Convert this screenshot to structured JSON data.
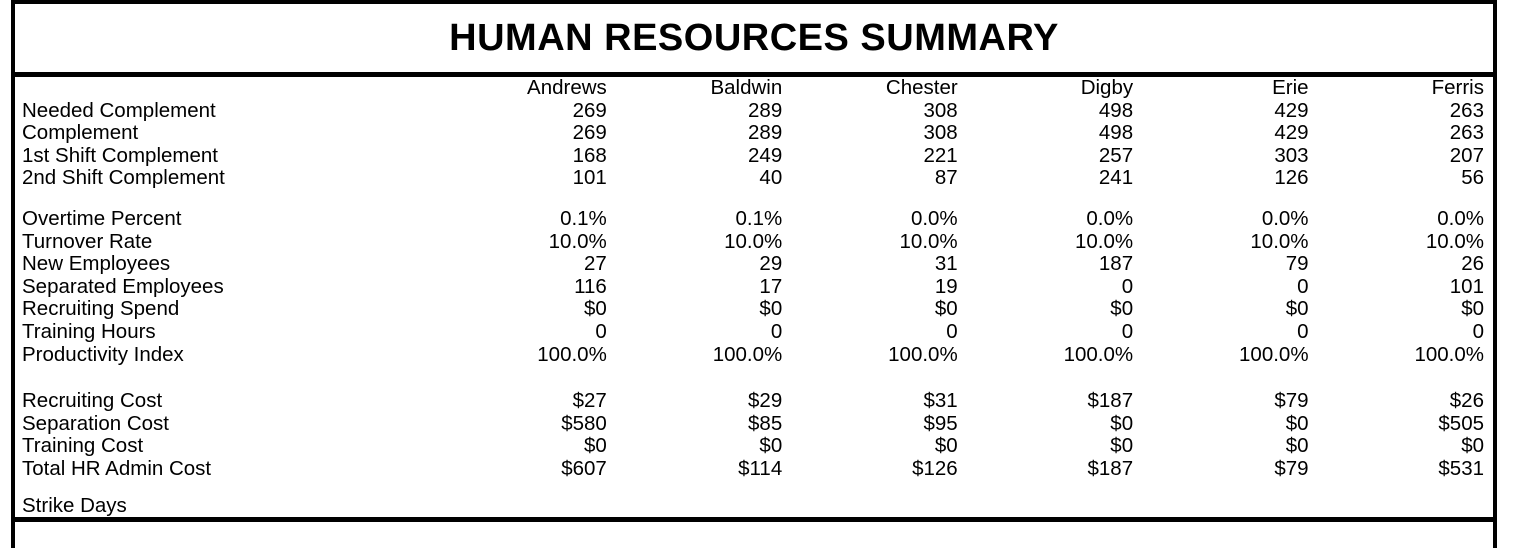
{
  "title": "HUMAN RESOURCES SUMMARY",
  "colors": {
    "text": "#000000",
    "background": "#ffffff",
    "border": "#000000"
  },
  "table": {
    "columns": [
      "Andrews",
      "Baldwin",
      "Chester",
      "Digby",
      "Erie",
      "Ferris"
    ],
    "groups": [
      {
        "name": "complement",
        "rows": [
          {
            "label": "Needed Complement",
            "values": [
              "269",
              "289",
              "308",
              "498",
              "429",
              "263"
            ]
          },
          {
            "label": "Complement",
            "values": [
              "269",
              "289",
              "308",
              "498",
              "429",
              "263"
            ]
          },
          {
            "label": "1st Shift Complement",
            "values": [
              "168",
              "249",
              "221",
              "257",
              "303",
              "207"
            ]
          },
          {
            "label": "2nd Shift Complement",
            "values": [
              "101",
              "40",
              "87",
              "241",
              "126",
              "56"
            ]
          }
        ]
      },
      {
        "name": "workforce-metrics",
        "rows": [
          {
            "label": "Overtime Percent",
            "values": [
              "0.1%",
              "0.1%",
              "0.0%",
              "0.0%",
              "0.0%",
              "0.0%"
            ]
          },
          {
            "label": "Turnover Rate",
            "values": [
              "10.0%",
              "10.0%",
              "10.0%",
              "10.0%",
              "10.0%",
              "10.0%"
            ]
          },
          {
            "label": "New Employees",
            "values": [
              "27",
              "29",
              "31",
              "187",
              "79",
              "26"
            ]
          },
          {
            "label": "Separated Employees",
            "values": [
              "116",
              "17",
              "19",
              "0",
              "0",
              "101"
            ]
          },
          {
            "label": "Recruiting Spend",
            "values": [
              "$0",
              "$0",
              "$0",
              "$0",
              "$0",
              "$0"
            ]
          },
          {
            "label": "Training Hours",
            "values": [
              "0",
              "0",
              "0",
              "0",
              "0",
              "0"
            ]
          },
          {
            "label": "Productivity Index",
            "values": [
              "100.0%",
              "100.0%",
              "100.0%",
              "100.0%",
              "100.0%",
              "100.0%"
            ]
          }
        ]
      },
      {
        "name": "hr-costs",
        "rows": [
          {
            "label": "Recruiting Cost",
            "values": [
              "$27",
              "$29",
              "$31",
              "$187",
              "$79",
              "$26"
            ]
          },
          {
            "label": "Separation Cost",
            "values": [
              "$580",
              "$85",
              "$95",
              "$0",
              "$0",
              "$505"
            ]
          },
          {
            "label": "Training Cost",
            "values": [
              "$0",
              "$0",
              "$0",
              "$0",
              "$0",
              "$0"
            ]
          },
          {
            "label": "Total HR Admin Cost",
            "values": [
              "$607",
              "$114",
              "$126",
              "$187",
              "$79",
              "$531"
            ]
          }
        ]
      },
      {
        "name": "strike",
        "rows": [
          {
            "label": "Strike Days",
            "values": [
              "",
              "",
              "",
              "",
              "",
              ""
            ]
          }
        ]
      }
    ]
  }
}
